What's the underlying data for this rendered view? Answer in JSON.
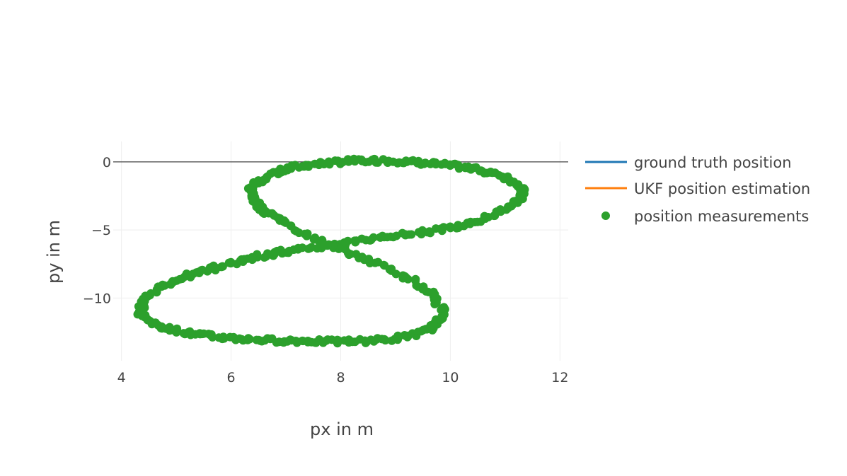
{
  "chart_data": {
    "type": "scatter",
    "title": "",
    "xlabel": "px in m",
    "ylabel": "py in m",
    "xlim": [
      3.85,
      12.15
    ],
    "ylim": [
      -14.6,
      1.5
    ],
    "x_ticks": [
      4,
      6,
      8,
      10,
      12
    ],
    "y_ticks": [
      0,
      -5,
      -10
    ],
    "x_tick_labels": [
      "4",
      "6",
      "8",
      "10",
      "12"
    ],
    "y_tick_labels": [
      "0",
      "−5",
      "−10"
    ],
    "grid": true,
    "legend_position": "right",
    "colors": {
      "ground_truth": "#1f77b4",
      "ukf": "#ff7f0e",
      "measurements": "#2ca02c",
      "grid": "#eeeeee",
      "zeroline": "#444444",
      "text": "#444444"
    },
    "series": [
      {
        "name": "ground truth position",
        "mode": "lines",
        "x": [],
        "y": []
      },
      {
        "name": "UKF position estimation",
        "mode": "lines",
        "x": [],
        "y": []
      },
      {
        "name": "position measurements",
        "mode": "markers",
        "x": [
          6.36,
          6.72,
          7.2,
          7.68,
          8.16,
          8.64,
          9.12,
          9.6,
          10.08,
          10.56,
          11.0,
          11.3,
          11.32,
          11.05,
          10.6,
          10.05,
          9.46,
          8.84,
          8.22,
          7.62,
          7.06,
          6.54,
          6.08,
          5.62,
          5.16,
          4.72,
          4.38,
          4.34,
          4.66,
          5.12,
          5.62,
          6.16,
          6.72,
          7.28,
          7.84,
          8.4,
          8.96,
          9.44,
          9.76,
          9.86,
          9.68,
          9.28,
          8.74,
          8.14,
          7.54,
          6.98,
          6.58,
          6.38
        ],
        "y": [
          -1.9,
          -0.9,
          -0.35,
          -0.1,
          0.05,
          0.1,
          0.05,
          -0.1,
          -0.3,
          -0.6,
          -1.1,
          -1.8,
          -2.6,
          -3.4,
          -4.2,
          -4.8,
          -5.2,
          -5.5,
          -5.85,
          -6.2,
          -6.55,
          -6.9,
          -7.35,
          -7.85,
          -8.4,
          -9.2,
          -10.2,
          -11.2,
          -12.0,
          -12.5,
          -12.8,
          -13.0,
          -13.1,
          -13.15,
          -13.2,
          -13.15,
          -13.0,
          -12.6,
          -11.9,
          -10.9,
          -9.8,
          -8.6,
          -7.6,
          -6.7,
          -5.6,
          -4.5,
          -3.5,
          -2.7
        ]
      }
    ]
  }
}
